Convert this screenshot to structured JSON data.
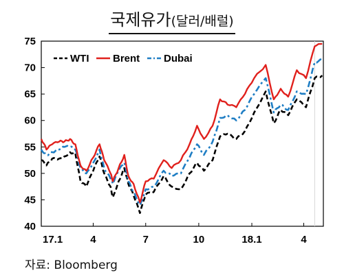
{
  "title_main": "국제유가",
  "title_unit": "(달러/배럴)",
  "source": "자료:  Bloomberg",
  "chart_data": {
    "type": "line",
    "title": "국제유가(달러/배럴)",
    "xlabel": "",
    "ylabel": "",
    "ylim": [
      40,
      75
    ],
    "yticks": [
      40,
      45,
      50,
      55,
      60,
      65,
      70,
      75
    ],
    "xlim": [
      "2017-01-01",
      "2018-05-05"
    ],
    "xticks": [
      {
        "label": "17.1",
        "date": "2017-01-01"
      },
      {
        "label": "4",
        "date": "2017-04-01"
      },
      {
        "label": "7",
        "date": "2017-07-01"
      },
      {
        "label": "10",
        "date": "2017-10-01"
      },
      {
        "label": "18.1",
        "date": "2018-01-01"
      },
      {
        "label": "4",
        "date": "2018-04-01"
      }
    ],
    "grid": false,
    "legend": "top-left",
    "series": [
      {
        "name": "WTI",
        "color": "#000000",
        "dash": "dashed",
        "points": [
          [
            "2017-01-01",
            52.5
          ],
          [
            "2017-01-10",
            51.5
          ],
          [
            "2017-01-20",
            52.8
          ],
          [
            "2017-02-01",
            52.8
          ],
          [
            "2017-02-10",
            53.2
          ],
          [
            "2017-02-20",
            54.0
          ],
          [
            "2017-03-01",
            53.8
          ],
          [
            "2017-03-10",
            48.5
          ],
          [
            "2017-03-20",
            47.5
          ],
          [
            "2017-04-01",
            50.5
          ],
          [
            "2017-04-12",
            53.2
          ],
          [
            "2017-04-20",
            50.0
          ],
          [
            "2017-05-01",
            47.5
          ],
          [
            "2017-05-05",
            45.5
          ],
          [
            "2017-05-15",
            48.5
          ],
          [
            "2017-05-25",
            51.0
          ],
          [
            "2017-06-01",
            48.0
          ],
          [
            "2017-06-10",
            45.8
          ],
          [
            "2017-06-21",
            42.5
          ],
          [
            "2017-07-01",
            46.0
          ],
          [
            "2017-07-15",
            46.5
          ],
          [
            "2017-08-01",
            49.5
          ],
          [
            "2017-08-15",
            47.5
          ],
          [
            "2017-08-31",
            47.0
          ],
          [
            "2017-09-15",
            50.0
          ],
          [
            "2017-09-28",
            52.0
          ],
          [
            "2017-10-10",
            50.5
          ],
          [
            "2017-10-25",
            52.5
          ],
          [
            "2017-11-07",
            57.0
          ],
          [
            "2017-11-20",
            57.5
          ],
          [
            "2017-12-05",
            56.5
          ],
          [
            "2017-12-20",
            58.0
          ],
          [
            "2018-01-05",
            61.5
          ],
          [
            "2018-01-25",
            65.5
          ],
          [
            "2018-02-08",
            59.5
          ],
          [
            "2018-02-20",
            62.0
          ],
          [
            "2018-03-05",
            61.0
          ],
          [
            "2018-03-20",
            64.0
          ],
          [
            "2018-04-05",
            62.5
          ],
          [
            "2018-04-20",
            68.0
          ],
          [
            "2018-05-03",
            68.5
          ]
        ]
      },
      {
        "name": "Brent",
        "color": "#e0201c",
        "dash": "solid",
        "points": [
          [
            "2017-01-01",
            56.5
          ],
          [
            "2017-01-10",
            54.5
          ],
          [
            "2017-01-20",
            55.5
          ],
          [
            "2017-02-01",
            56.0
          ],
          [
            "2017-02-10",
            56.0
          ],
          [
            "2017-02-20",
            56.5
          ],
          [
            "2017-03-01",
            55.5
          ],
          [
            "2017-03-10",
            51.5
          ],
          [
            "2017-03-20",
            50.5
          ],
          [
            "2017-04-01",
            53.0
          ],
          [
            "2017-04-12",
            55.5
          ],
          [
            "2017-04-20",
            52.5
          ],
          [
            "2017-05-01",
            50.0
          ],
          [
            "2017-05-05",
            48.5
          ],
          [
            "2017-05-15",
            51.0
          ],
          [
            "2017-05-25",
            53.5
          ],
          [
            "2017-06-01",
            49.5
          ],
          [
            "2017-06-10",
            48.0
          ],
          [
            "2017-06-21",
            44.5
          ],
          [
            "2017-07-01",
            48.5
          ],
          [
            "2017-07-15",
            49.0
          ],
          [
            "2017-08-01",
            52.5
          ],
          [
            "2017-08-15",
            51.0
          ],
          [
            "2017-08-31",
            52.5
          ],
          [
            "2017-09-15",
            55.5
          ],
          [
            "2017-09-28",
            59.0
          ],
          [
            "2017-10-10",
            56.5
          ],
          [
            "2017-10-25",
            59.0
          ],
          [
            "2017-11-07",
            64.0
          ],
          [
            "2017-11-20",
            63.0
          ],
          [
            "2017-12-05",
            62.5
          ],
          [
            "2017-12-20",
            65.0
          ],
          [
            "2018-01-05",
            68.0
          ],
          [
            "2018-01-25",
            70.5
          ],
          [
            "2018-02-08",
            64.0
          ],
          [
            "2018-02-20",
            66.0
          ],
          [
            "2018-03-05",
            64.5
          ],
          [
            "2018-03-20",
            69.5
          ],
          [
            "2018-04-05",
            68.0
          ],
          [
            "2018-04-20",
            74.0
          ],
          [
            "2018-05-03",
            74.5
          ]
        ]
      },
      {
        "name": "Dubai",
        "color": "#1f7ec4",
        "dash": "dash-dot",
        "points": [
          [
            "2017-01-01",
            54.5
          ],
          [
            "2017-01-10",
            53.5
          ],
          [
            "2017-01-20",
            54.0
          ],
          [
            "2017-02-01",
            54.5
          ],
          [
            "2017-02-10",
            55.0
          ],
          [
            "2017-02-20",
            55.0
          ],
          [
            "2017-03-01",
            54.5
          ],
          [
            "2017-03-10",
            51.0
          ],
          [
            "2017-03-20",
            50.0
          ],
          [
            "2017-04-01",
            52.0
          ],
          [
            "2017-04-12",
            54.5
          ],
          [
            "2017-04-20",
            51.0
          ],
          [
            "2017-05-01",
            49.0
          ],
          [
            "2017-05-05",
            48.0
          ],
          [
            "2017-05-15",
            50.5
          ],
          [
            "2017-05-25",
            52.0
          ],
          [
            "2017-06-01",
            48.5
          ],
          [
            "2017-06-10",
            46.5
          ],
          [
            "2017-06-21",
            44.0
          ],
          [
            "2017-07-01",
            47.0
          ],
          [
            "2017-07-15",
            47.5
          ],
          [
            "2017-08-01",
            50.5
          ],
          [
            "2017-08-15",
            49.5
          ],
          [
            "2017-08-31",
            50.0
          ],
          [
            "2017-09-15",
            53.0
          ],
          [
            "2017-09-28",
            55.5
          ],
          [
            "2017-10-10",
            53.5
          ],
          [
            "2017-10-25",
            56.0
          ],
          [
            "2017-11-07",
            60.5
          ],
          [
            "2017-11-20",
            61.0
          ],
          [
            "2017-12-05",
            60.0
          ],
          [
            "2017-12-20",
            62.0
          ],
          [
            "2018-01-05",
            65.0
          ],
          [
            "2018-01-25",
            68.0
          ],
          [
            "2018-02-08",
            61.5
          ],
          [
            "2018-02-20",
            63.0
          ],
          [
            "2018-03-05",
            62.0
          ],
          [
            "2018-03-20",
            65.5
          ],
          [
            "2018-04-05",
            65.0
          ],
          [
            "2018-04-20",
            71.0
          ],
          [
            "2018-05-03",
            71.5
          ]
        ]
      }
    ]
  }
}
